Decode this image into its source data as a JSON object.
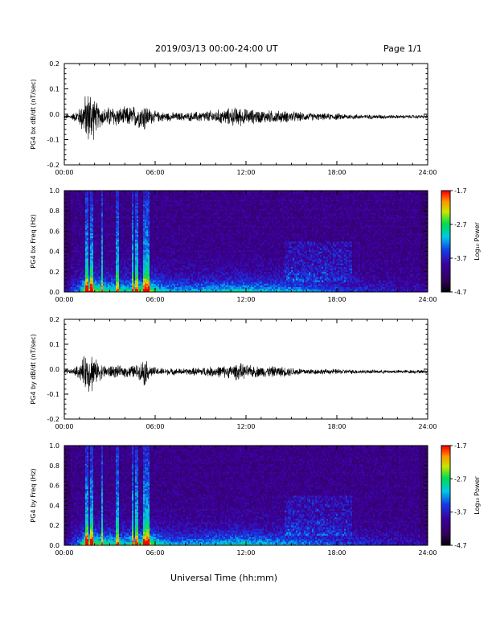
{
  "header": {
    "title": "2019/03/13  00:00-24:00 UT",
    "page": "Page 1/1"
  },
  "xlabel": "Universal Time (hh:mm)",
  "chart_data": [
    {
      "type": "line",
      "ylabel": "PG4 bx dB/dt (nT/sec)",
      "ylim": [
        -0.2,
        0.2
      ],
      "yticks": [
        "0.2",
        "0.1",
        "0.0",
        "-0.1",
        "-0.2"
      ],
      "xticks": [
        "00:00",
        "06:00",
        "12:00",
        "18:00",
        "24:00"
      ],
      "xlim_hours": [
        0,
        24
      ],
      "envelope": {
        "hours": [
          0,
          0.5,
          1.0,
          1.3,
          1.6,
          1.8,
          2.0,
          2.3,
          2.7,
          3.2,
          3.8,
          4.5,
          5.0,
          5.3,
          5.6,
          6.0,
          7,
          8,
          9,
          10,
          11,
          11.5,
          12,
          13,
          14,
          15,
          16,
          17,
          18,
          19,
          20,
          21,
          22,
          23,
          24
        ],
        "amplitude": [
          0.01,
          0.012,
          0.04,
          0.09,
          0.12,
          0.14,
          0.08,
          0.05,
          0.04,
          0.05,
          0.04,
          0.05,
          0.05,
          0.07,
          0.04,
          0.025,
          0.02,
          0.018,
          0.025,
          0.03,
          0.04,
          0.045,
          0.035,
          0.03,
          0.028,
          0.025,
          0.018,
          0.015,
          0.015,
          0.012,
          0.01,
          0.01,
          0.008,
          0.008,
          0.008
        ]
      }
    },
    {
      "type": "heatmap",
      "ylabel": "PG4 bx Freq (Hz)",
      "ylim": [
        0,
        1.0
      ],
      "yticks": [
        "1.0",
        "0.8",
        "0.6",
        "0.4",
        "0.2",
        "0.0"
      ],
      "xticks": [
        "00:00",
        "06:00",
        "12:00",
        "18:00",
        "24:00"
      ],
      "colorbar": {
        "label": "Log₁₀ Power",
        "ticks": [
          "-1.7",
          "-2.7",
          "-3.7",
          "-4.7"
        ],
        "range": [
          -4.7,
          -1.7
        ]
      }
    },
    {
      "type": "line",
      "ylabel": "PG4 by dB/dt (nT/sec)",
      "ylim": [
        -0.2,
        0.2
      ],
      "yticks": [
        "0.2",
        "0.1",
        "0.0",
        "-0.1",
        "-0.2"
      ],
      "xticks": [
        "00:00",
        "06:00",
        "12:00",
        "18:00",
        "24:00"
      ],
      "xlim_hours": [
        0,
        24
      ],
      "envelope": {
        "hours": [
          0,
          0.5,
          1.0,
          1.3,
          1.6,
          1.8,
          2.0,
          2.3,
          2.7,
          3.2,
          3.8,
          4.5,
          5.0,
          5.3,
          5.6,
          6.0,
          7,
          8,
          9,
          10,
          11,
          11.5,
          12,
          13,
          14,
          15,
          16,
          17,
          18,
          19,
          20,
          21,
          22,
          23,
          24
        ],
        "amplitude": [
          0.01,
          0.012,
          0.035,
          0.07,
          0.09,
          0.1,
          0.06,
          0.04,
          0.03,
          0.03,
          0.025,
          0.03,
          0.035,
          0.07,
          0.03,
          0.02,
          0.015,
          0.015,
          0.02,
          0.025,
          0.03,
          0.04,
          0.03,
          0.025,
          0.025,
          0.02,
          0.015,
          0.012,
          0.012,
          0.01,
          0.009,
          0.008,
          0.008,
          0.008,
          0.008
        ]
      }
    },
    {
      "type": "heatmap",
      "ylabel": "PG4 by Freq (Hz)",
      "ylim": [
        0,
        1.0
      ],
      "yticks": [
        "1.0",
        "0.8",
        "0.6",
        "0.4",
        "0.2",
        "0.0"
      ],
      "xticks": [
        "00:00",
        "06:00",
        "12:00",
        "18:00",
        "24:00"
      ],
      "colorbar": {
        "label": "Log₁₀ Power",
        "ticks": [
          "-1.7",
          "-2.7",
          "-3.7",
          "-4.7"
        ],
        "range": [
          -4.7,
          -1.7
        ]
      }
    }
  ]
}
